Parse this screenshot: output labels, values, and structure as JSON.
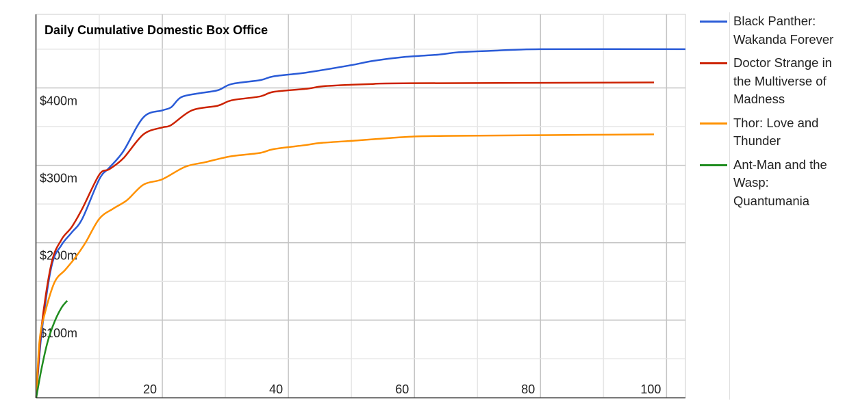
{
  "chart_data": {
    "type": "line",
    "title": "Daily Cumulative Domestic Box Office",
    "xlabel": "",
    "ylabel": "",
    "xlim": [
      0,
      103
    ],
    "ylim": [
      0,
      495
    ],
    "x_ticks": [
      20,
      40,
      60,
      80,
      100
    ],
    "x_tick_labels": [
      "20",
      "40",
      "60",
      "80",
      "100"
    ],
    "y_ticks": [
      100,
      200,
      300,
      400
    ],
    "y_tick_labels": [
      "$100m",
      "$200m",
      "$300m",
      "$400m"
    ],
    "x_minor_grid_step": 10,
    "y_minor_grid_step": 50,
    "grid": true,
    "legend_position": "right",
    "series": [
      {
        "name": "Black Panther: Wakanda Forever",
        "color": "#2a5bd7",
        "x": [
          0,
          0.8,
          2.4,
          4,
          5.6,
          7.3,
          10,
          11.6,
          13.8,
          17,
          20,
          21.4,
          23,
          25.8,
          28.8,
          31,
          35.5,
          37.7,
          43,
          49.7,
          53.5,
          58.4,
          63.8,
          67,
          72.5,
          80,
          103
        ],
        "y": [
          0,
          80,
          169,
          197,
          213,
          231,
          282,
          297,
          318,
          362,
          371,
          375,
          388,
          393,
          397,
          405,
          410,
          415,
          420,
          429,
          435,
          440,
          443,
          446,
          448,
          450,
          450
        ]
      },
      {
        "name": "Doctor Strange in the Multiverse of Madness",
        "color": "#cc2200",
        "x": [
          0,
          0.8,
          2.4,
          4,
          5.6,
          7.3,
          10,
          11.6,
          13.8,
          17,
          20,
          21.4,
          24.7,
          28.8,
          31,
          35.5,
          37.7,
          43,
          45.3,
          49.7,
          53,
          59.5,
          98
        ],
        "y": [
          0,
          89,
          173,
          204,
          220,
          244,
          288,
          295,
          309,
          340,
          349,
          352,
          371,
          377,
          384,
          389,
          395,
          399,
          402,
          404,
          405,
          406,
          407
        ]
      },
      {
        "name": "Thor: Love and Thunder",
        "color": "#ff9100",
        "x": [
          0,
          0.5,
          1.3,
          2.9,
          4.6,
          6.2,
          7.8,
          10,
          12.2,
          14.4,
          17,
          20,
          23.6,
          26.8,
          28.8,
          31.2,
          35.5,
          37.7,
          42.6,
          45.3,
          50.8,
          54,
          59.5,
          64.9,
          81.2,
          98
        ],
        "y": [
          0,
          72,
          107,
          149,
          165,
          181,
          200,
          231,
          244,
          255,
          275,
          282,
          298,
          304,
          308,
          312,
          316,
          321,
          326,
          329,
          332,
          334,
          337,
          338,
          339,
          340
        ]
      },
      {
        "name": "Ant-Man and the Wasp: Quantumania",
        "color": "#1e8c1e",
        "x": [
          0,
          0.8,
          1.8,
          2.9,
          4,
          4.9
        ],
        "y": [
          0,
          36,
          72,
          98,
          116,
          125
        ]
      }
    ]
  }
}
